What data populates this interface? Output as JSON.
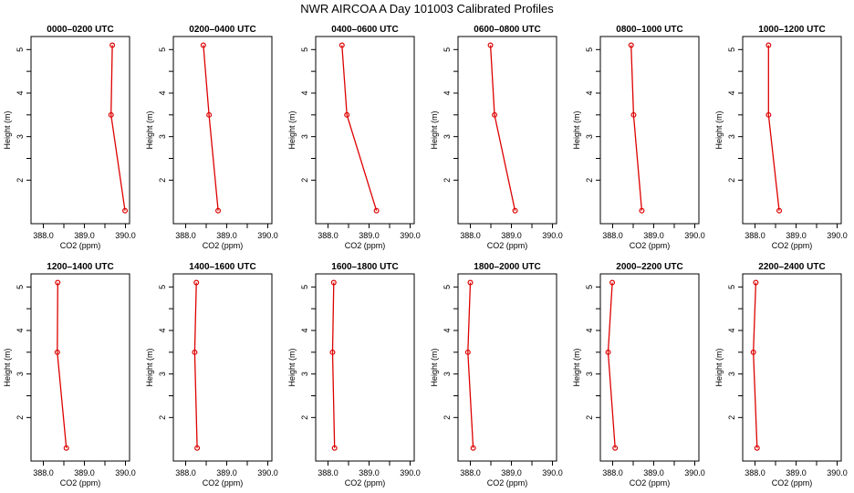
{
  "figure_title": "NWR AIRCOA A  Day 101003  Calibrated Profiles",
  "colors": {
    "series": "#dd0000",
    "frame": "#000000"
  },
  "chart_data": [
    {
      "type": "line",
      "title": "0000–0200 UTC",
      "xlabel": "CO2 (ppm)",
      "ylabel": "Height (m)",
      "xlim": [
        387.7,
        390.1
      ],
      "ylim": [
        1.0,
        5.3
      ],
      "xticks": [
        "388.0",
        "389.0",
        "390.0"
      ],
      "yticks": [
        "2",
        "3",
        "4",
        "5"
      ],
      "grid": false,
      "series": [
        {
          "x": [
            389.68,
            389.65,
            389.99
          ],
          "y": [
            5.1,
            3.5,
            1.3
          ]
        }
      ]
    },
    {
      "type": "line",
      "title": "0200–0400 UTC",
      "xlabel": "CO2 (ppm)",
      "ylabel": "Height (m)",
      "xlim": [
        387.7,
        390.1
      ],
      "ylim": [
        1.0,
        5.3
      ],
      "xticks": [
        "388.0",
        "389.0",
        "390.0"
      ],
      "yticks": [
        "2",
        "3",
        "4",
        "5"
      ],
      "grid": false,
      "series": [
        {
          "x": [
            388.43,
            388.57,
            388.79
          ],
          "y": [
            5.1,
            3.5,
            1.3
          ]
        }
      ]
    },
    {
      "type": "line",
      "title": "0400–0600 UTC",
      "xlabel": "CO2 (ppm)",
      "ylabel": "Height (m)",
      "xlim": [
        387.7,
        390.1
      ],
      "ylim": [
        1.0,
        5.3
      ],
      "xticks": [
        "388.0",
        "389.0",
        "390.0"
      ],
      "yticks": [
        "2",
        "3",
        "4",
        "5"
      ],
      "grid": false,
      "series": [
        {
          "x": [
            388.34,
            388.46,
            389.18
          ],
          "y": [
            5.1,
            3.5,
            1.3
          ]
        }
      ]
    },
    {
      "type": "line",
      "title": "0600–0800 UTC",
      "xlabel": "CO2 (ppm)",
      "ylabel": "Height (m)",
      "xlim": [
        387.7,
        390.1
      ],
      "ylim": [
        1.0,
        5.3
      ],
      "xticks": [
        "388.0",
        "389.0",
        "390.0"
      ],
      "yticks": [
        "2",
        "3",
        "4",
        "5"
      ],
      "grid": false,
      "series": [
        {
          "x": [
            388.49,
            388.59,
            389.09
          ],
          "y": [
            5.1,
            3.5,
            1.3
          ]
        }
      ]
    },
    {
      "type": "line",
      "title": "0800–1000 UTC",
      "xlabel": "CO2 (ppm)",
      "ylabel": "Height (m)",
      "xlim": [
        387.7,
        390.1
      ],
      "ylim": [
        1.0,
        5.3
      ],
      "xticks": [
        "388.0",
        "389.0",
        "390.0"
      ],
      "yticks": [
        "2",
        "3",
        "4",
        "5"
      ],
      "grid": false,
      "series": [
        {
          "x": [
            388.45,
            388.51,
            388.71
          ],
          "y": [
            5.1,
            3.5,
            1.3
          ]
        }
      ]
    },
    {
      "type": "line",
      "title": "1000–1200 UTC",
      "xlabel": "CO2 (ppm)",
      "ylabel": "Height (m)",
      "xlim": [
        387.7,
        390.1
      ],
      "ylim": [
        1.0,
        5.3
      ],
      "xticks": [
        "388.0",
        "389.0",
        "390.0"
      ],
      "yticks": [
        "2",
        "3",
        "4",
        "5"
      ],
      "grid": false,
      "series": [
        {
          "x": [
            388.33,
            388.33,
            388.59
          ],
          "y": [
            5.1,
            3.5,
            1.3
          ]
        }
      ]
    },
    {
      "type": "line",
      "title": "1200–1400 UTC",
      "xlabel": "CO2 (ppm)",
      "ylabel": "Height (m)",
      "xlim": [
        387.7,
        390.1
      ],
      "ylim": [
        1.0,
        5.3
      ],
      "xticks": [
        "388.0",
        "389.0",
        "390.0"
      ],
      "yticks": [
        "2",
        "3",
        "4",
        "5"
      ],
      "grid": false,
      "series": [
        {
          "x": [
            388.35,
            388.34,
            388.56
          ],
          "y": [
            5.1,
            3.5,
            1.3
          ]
        }
      ]
    },
    {
      "type": "line",
      "title": "1400–1600 UTC",
      "xlabel": "CO2 (ppm)",
      "ylabel": "Height (m)",
      "xlim": [
        387.7,
        390.1
      ],
      "ylim": [
        1.0,
        5.3
      ],
      "xticks": [
        "388.0",
        "389.0",
        "390.0"
      ],
      "yticks": [
        "2",
        "3",
        "4",
        "5"
      ],
      "grid": false,
      "series": [
        {
          "x": [
            388.26,
            388.22,
            388.28
          ],
          "y": [
            5.1,
            3.5,
            1.3
          ]
        }
      ]
    },
    {
      "type": "line",
      "title": "1600–1800 UTC",
      "xlabel": "CO2 (ppm)",
      "ylabel": "Height (m)",
      "xlim": [
        387.7,
        390.1
      ],
      "ylim": [
        1.0,
        5.3
      ],
      "xticks": [
        "388.0",
        "389.0",
        "390.0"
      ],
      "yticks": [
        "2",
        "3",
        "4",
        "5"
      ],
      "grid": false,
      "series": [
        {
          "x": [
            388.14,
            388.11,
            388.16
          ],
          "y": [
            5.1,
            3.5,
            1.3
          ]
        }
      ]
    },
    {
      "type": "line",
      "title": "1800–2000 UTC",
      "xlabel": "CO2 (ppm)",
      "ylabel": "Height (m)",
      "xlim": [
        387.7,
        390.1
      ],
      "ylim": [
        1.0,
        5.3
      ],
      "xticks": [
        "388.0",
        "389.0",
        "390.0"
      ],
      "yticks": [
        "2",
        "3",
        "4",
        "5"
      ],
      "grid": false,
      "series": [
        {
          "x": [
            388.0,
            387.94,
            388.07
          ],
          "y": [
            5.1,
            3.5,
            1.3
          ]
        }
      ]
    },
    {
      "type": "line",
      "title": "2000–2200 UTC",
      "xlabel": "CO2 (ppm)",
      "ylabel": "Height (m)",
      "xlim": [
        387.7,
        390.1
      ],
      "ylim": [
        1.0,
        5.3
      ],
      "xticks": [
        "388.0",
        "389.0",
        "390.0"
      ],
      "yticks": [
        "2",
        "3",
        "4",
        "5"
      ],
      "grid": false,
      "series": [
        {
          "x": [
            387.99,
            387.89,
            388.06
          ],
          "y": [
            5.1,
            3.5,
            1.3
          ]
        }
      ]
    },
    {
      "type": "line",
      "title": "2200–2400 UTC",
      "xlabel": "CO2 (ppm)",
      "ylabel": "Height (m)",
      "xlim": [
        387.7,
        390.1
      ],
      "ylim": [
        1.0,
        5.3
      ],
      "xticks": [
        "388.0",
        "389.0",
        "390.0"
      ],
      "yticks": [
        "2",
        "3",
        "4",
        "5"
      ],
      "grid": false,
      "series": [
        {
          "x": [
            388.02,
            387.96,
            388.05
          ],
          "y": [
            5.1,
            3.5,
            1.3
          ]
        }
      ]
    }
  ]
}
